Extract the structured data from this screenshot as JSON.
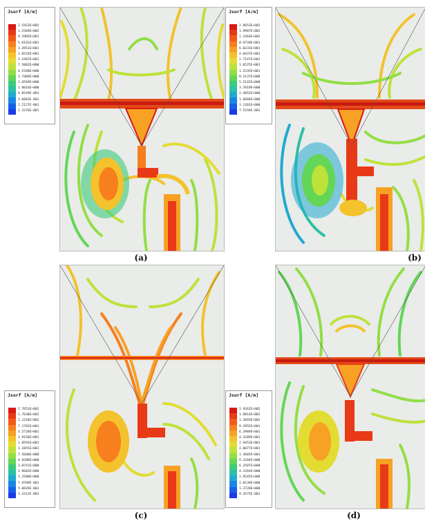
{
  "figure": {
    "panels": [
      {
        "caption": "(a)",
        "legend": {
          "title": "Jsurf [A/m]",
          "values": [
            "2.5423E+002",
            "1.5369E+002",
            "9.2905E+001",
            "5.6162E+001",
            "3.3951E+001",
            "2.0524E+001",
            "1.2407E+001",
            "7.5002E+000",
            "4.5340E+000",
            "2.7409E+000",
            "1.6569E+000",
            "1.0016E+000",
            "6.0549E-001",
            "3.6603E-001",
            "2.2127E-001",
            "1.3376E-001"
          ]
        }
      },
      {
        "caption": "(b)",
        "legend": {
          "title": "Jsurf [A/m]",
          "values": [
            "2.9653E+002",
            "1.9907E+002",
            "1.3364E+002",
            "8.9720E+001",
            "6.0233E+001",
            "4.0437E+001",
            "2.7147E+001",
            "1.8225E+001",
            "1.2235E+001",
            "8.2137E+000",
            "5.5142E+000",
            "3.7019E+000",
            "2.4852E+000",
            "1.6684E+000",
            "1.1201E+000",
            "7.5194E-001"
          ]
        }
      },
      {
        "caption": "(c)",
        "legend": {
          "title": "Jsurf [A/m]",
          "values": [
            "2.7653E+002",
            "1.7630E+002",
            "1.1244E+002",
            "7.1702E+001",
            "4.5728E+001",
            "2.9156E+001",
            "1.8592E+001",
            "1.1855E+001",
            "7.5600E+000",
            "4.8208E+000",
            "3.0741E+000",
            "1.9603E+000",
            "1.2500E+000",
            "7.9709E-001",
            "5.0828E-001",
            "3.2412E-001"
          ]
        }
      },
      {
        "caption": "(d)",
        "legend": {
          "title": "Jsurf [A/m]",
          "values": [
            "2.9362E+002",
            "1.9014E+002",
            "1.3693E+002",
            "9.2955E+001",
            "6.3989E+001",
            "4.3209E+001",
            "2.9453E+001",
            "2.0077E+001",
            "1.3685E+001",
            "9.3284E+000",
            "6.3587E+000",
            "4.3344E+000",
            "2.9545E+000",
            "2.0139E+000",
            "1.3728E+000",
            "9.3575E-001"
          ]
        }
      }
    ],
    "colorscale": [
      "#d71a14",
      "#e83a16",
      "#f35a1a",
      "#f77f1e",
      "#f7a125",
      "#f3c22c",
      "#e3dc32",
      "#bde23a",
      "#93de45",
      "#63d657",
      "#3ccc79",
      "#2cc1a6",
      "#22a9d0",
      "#1a86e4",
      "#1560ea",
      "#1a3ce6"
    ]
  }
}
